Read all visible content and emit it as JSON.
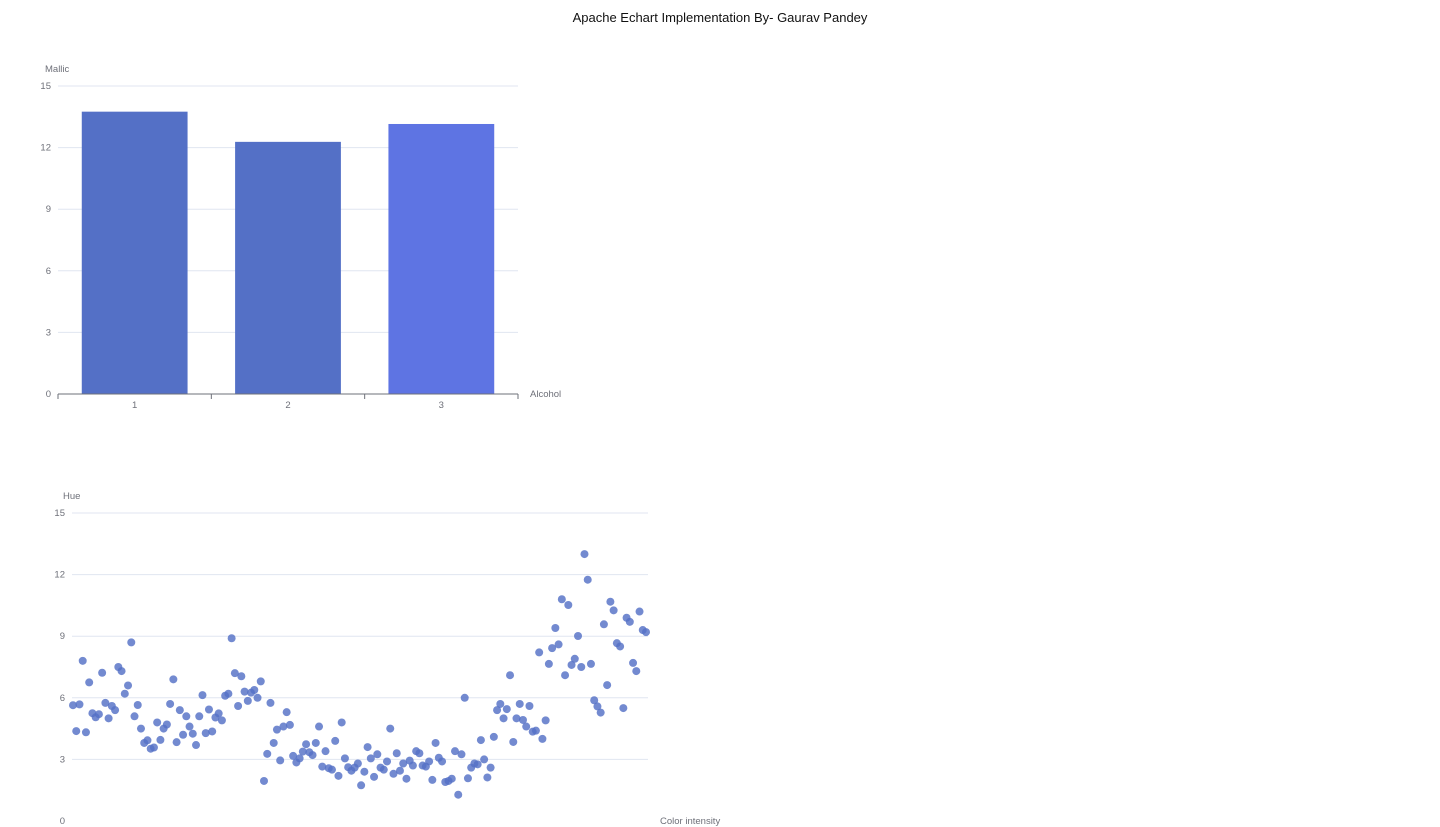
{
  "title": "Apache Echart Implementation By- Gaurav Pandey",
  "colors": {
    "bar_primary": "#5470c6",
    "bar_highlight": "#5e74e3",
    "scatter": "#5470c6",
    "grid": "#e0e6f1",
    "axis": "#6e7079"
  },
  "chart_data": [
    {
      "type": "bar",
      "categories": [
        "1",
        "2",
        "3"
      ],
      "values": [
        13.75,
        12.28,
        13.15
      ],
      "xlabel": "Alcohol",
      "ylabel": "Mallic",
      "ylim": [
        0,
        15
      ],
      "yticks": [
        0,
        3,
        6,
        9,
        12,
        15
      ],
      "grid": true
    },
    {
      "type": "scatter",
      "xlabel": "Color intensity",
      "ylabel": "Hue",
      "ylim": [
        0,
        15
      ],
      "yticks": [
        0,
        3,
        6,
        9,
        12,
        15
      ],
      "grid": true,
      "points": [
        {
          "x": 1,
          "y": 5.64
        },
        {
          "x": 2,
          "y": 4.38
        },
        {
          "x": 3,
          "y": 5.68
        },
        {
          "x": 4,
          "y": 7.8
        },
        {
          "x": 5,
          "y": 4.32
        },
        {
          "x": 6,
          "y": 6.75
        },
        {
          "x": 7,
          "y": 5.25
        },
        {
          "x": 8,
          "y": 5.05
        },
        {
          "x": 9,
          "y": 5.2
        },
        {
          "x": 10,
          "y": 7.22
        },
        {
          "x": 11,
          "y": 5.75
        },
        {
          "x": 12,
          "y": 5.0
        },
        {
          "x": 13,
          "y": 5.6
        },
        {
          "x": 14,
          "y": 5.4
        },
        {
          "x": 15,
          "y": 7.5
        },
        {
          "x": 16,
          "y": 7.3
        },
        {
          "x": 17,
          "y": 6.2
        },
        {
          "x": 18,
          "y": 6.6
        },
        {
          "x": 19,
          "y": 8.7
        },
        {
          "x": 20,
          "y": 5.1
        },
        {
          "x": 21,
          "y": 5.65
        },
        {
          "x": 22,
          "y": 4.5
        },
        {
          "x": 23,
          "y": 3.8
        },
        {
          "x": 24,
          "y": 3.93
        },
        {
          "x": 25,
          "y": 3.52
        },
        {
          "x": 26,
          "y": 3.58
        },
        {
          "x": 27,
          "y": 4.8
        },
        {
          "x": 28,
          "y": 3.95
        },
        {
          "x": 29,
          "y": 4.5
        },
        {
          "x": 30,
          "y": 4.7
        },
        {
          "x": 31,
          "y": 5.7
        },
        {
          "x": 32,
          "y": 6.9
        },
        {
          "x": 33,
          "y": 3.84
        },
        {
          "x": 34,
          "y": 5.4
        },
        {
          "x": 35,
          "y": 4.2
        },
        {
          "x": 36,
          "y": 5.1
        },
        {
          "x": 37,
          "y": 4.6
        },
        {
          "x": 38,
          "y": 4.25
        },
        {
          "x": 39,
          "y": 3.7
        },
        {
          "x": 40,
          "y": 5.1
        },
        {
          "x": 41,
          "y": 6.13
        },
        {
          "x": 42,
          "y": 4.28
        },
        {
          "x": 43,
          "y": 5.43
        },
        {
          "x": 44,
          "y": 4.36
        },
        {
          "x": 45,
          "y": 5.04
        },
        {
          "x": 46,
          "y": 5.24
        },
        {
          "x": 47,
          "y": 4.9
        },
        {
          "x": 48,
          "y": 6.1
        },
        {
          "x": 49,
          "y": 6.2
        },
        {
          "x": 50,
          "y": 8.9
        },
        {
          "x": 51,
          "y": 7.2
        },
        {
          "x": 52,
          "y": 5.6
        },
        {
          "x": 53,
          "y": 7.05
        },
        {
          "x": 54,
          "y": 6.3
        },
        {
          "x": 55,
          "y": 5.85
        },
        {
          "x": 56,
          "y": 6.25
        },
        {
          "x": 57,
          "y": 6.38
        },
        {
          "x": 58,
          "y": 6.0
        },
        {
          "x": 59,
          "y": 6.8
        },
        {
          "x": 60,
          "y": 1.95
        },
        {
          "x": 61,
          "y": 3.27
        },
        {
          "x": 62,
          "y": 5.75
        },
        {
          "x": 63,
          "y": 3.8
        },
        {
          "x": 64,
          "y": 4.45
        },
        {
          "x": 65,
          "y": 2.95
        },
        {
          "x": 66,
          "y": 4.6
        },
        {
          "x": 67,
          "y": 5.3
        },
        {
          "x": 68,
          "y": 4.68
        },
        {
          "x": 69,
          "y": 3.17
        },
        {
          "x": 70,
          "y": 2.85
        },
        {
          "x": 71,
          "y": 3.05
        },
        {
          "x": 72,
          "y": 3.38
        },
        {
          "x": 73,
          "y": 3.74
        },
        {
          "x": 74,
          "y": 3.35
        },
        {
          "x": 75,
          "y": 3.21
        },
        {
          "x": 76,
          "y": 3.8
        },
        {
          "x": 77,
          "y": 4.6
        },
        {
          "x": 78,
          "y": 2.65
        },
        {
          "x": 79,
          "y": 3.4
        },
        {
          "x": 80,
          "y": 2.57
        },
        {
          "x": 81,
          "y": 2.5
        },
        {
          "x": 82,
          "y": 3.9
        },
        {
          "x": 83,
          "y": 2.2
        },
        {
          "x": 84,
          "y": 4.8
        },
        {
          "x": 85,
          "y": 3.05
        },
        {
          "x": 86,
          "y": 2.62
        },
        {
          "x": 87,
          "y": 2.45
        },
        {
          "x": 88,
          "y": 2.6
        },
        {
          "x": 89,
          "y": 2.8
        },
        {
          "x": 90,
          "y": 1.74
        },
        {
          "x": 91,
          "y": 2.4
        },
        {
          "x": 92,
          "y": 3.6
        },
        {
          "x": 93,
          "y": 3.05
        },
        {
          "x": 94,
          "y": 2.15
        },
        {
          "x": 95,
          "y": 3.25
        },
        {
          "x": 96,
          "y": 2.6
        },
        {
          "x": 97,
          "y": 2.5
        },
        {
          "x": 98,
          "y": 2.9
        },
        {
          "x": 99,
          "y": 4.5
        },
        {
          "x": 100,
          "y": 2.3
        },
        {
          "x": 101,
          "y": 3.3
        },
        {
          "x": 102,
          "y": 2.45
        },
        {
          "x": 103,
          "y": 2.8
        },
        {
          "x": 104,
          "y": 2.06
        },
        {
          "x": 105,
          "y": 2.94
        },
        {
          "x": 106,
          "y": 2.7
        },
        {
          "x": 107,
          "y": 3.4
        },
        {
          "x": 108,
          "y": 3.3
        },
        {
          "x": 109,
          "y": 2.7
        },
        {
          "x": 110,
          "y": 2.65
        },
        {
          "x": 111,
          "y": 2.9
        },
        {
          "x": 112,
          "y": 2.0
        },
        {
          "x": 113,
          "y": 3.8
        },
        {
          "x": 114,
          "y": 3.08
        },
        {
          "x": 115,
          "y": 2.9
        },
        {
          "x": 116,
          "y": 1.9
        },
        {
          "x": 117,
          "y": 1.95
        },
        {
          "x": 118,
          "y": 2.06
        },
        {
          "x": 119,
          "y": 3.4
        },
        {
          "x": 120,
          "y": 1.28
        },
        {
          "x": 121,
          "y": 3.25
        },
        {
          "x": 122,
          "y": 6.0
        },
        {
          "x": 123,
          "y": 2.08
        },
        {
          "x": 124,
          "y": 2.6
        },
        {
          "x": 125,
          "y": 2.8
        },
        {
          "x": 126,
          "y": 2.76
        },
        {
          "x": 127,
          "y": 3.94
        },
        {
          "x": 128,
          "y": 3.0
        },
        {
          "x": 129,
          "y": 2.12
        },
        {
          "x": 130,
          "y": 2.6
        },
        {
          "x": 131,
          "y": 4.1
        },
        {
          "x": 132,
          "y": 5.4
        },
        {
          "x": 133,
          "y": 5.7
        },
        {
          "x": 134,
          "y": 5.0
        },
        {
          "x": 135,
          "y": 5.45
        },
        {
          "x": 136,
          "y": 7.1
        },
        {
          "x": 137,
          "y": 3.85
        },
        {
          "x": 138,
          "y": 5.0
        },
        {
          "x": 139,
          "y": 5.7
        },
        {
          "x": 140,
          "y": 4.92
        },
        {
          "x": 141,
          "y": 4.6
        },
        {
          "x": 142,
          "y": 5.6
        },
        {
          "x": 143,
          "y": 4.35
        },
        {
          "x": 144,
          "y": 4.4
        },
        {
          "x": 145,
          "y": 8.21
        },
        {
          "x": 146,
          "y": 4.0
        },
        {
          "x": 147,
          "y": 4.9
        },
        {
          "x": 148,
          "y": 7.65
        },
        {
          "x": 149,
          "y": 8.42
        },
        {
          "x": 150,
          "y": 9.4
        },
        {
          "x": 151,
          "y": 8.6
        },
        {
          "x": 152,
          "y": 10.8
        },
        {
          "x": 153,
          "y": 7.1
        },
        {
          "x": 154,
          "y": 10.52
        },
        {
          "x": 155,
          "y": 7.6
        },
        {
          "x": 156,
          "y": 7.9
        },
        {
          "x": 157,
          "y": 9.01
        },
        {
          "x": 158,
          "y": 7.5
        },
        {
          "x": 159,
          "y": 13.0
        },
        {
          "x": 160,
          "y": 11.75
        },
        {
          "x": 161,
          "y": 7.65
        },
        {
          "x": 162,
          "y": 5.88
        },
        {
          "x": 163,
          "y": 5.58
        },
        {
          "x": 164,
          "y": 5.28
        },
        {
          "x": 165,
          "y": 9.58
        },
        {
          "x": 166,
          "y": 6.62
        },
        {
          "x": 167,
          "y": 10.68
        },
        {
          "x": 168,
          "y": 10.26
        },
        {
          "x": 169,
          "y": 8.66
        },
        {
          "x": 170,
          "y": 8.5
        },
        {
          "x": 171,
          "y": 5.5
        },
        {
          "x": 172,
          "y": 9.899
        },
        {
          "x": 173,
          "y": 9.7
        },
        {
          "x": 174,
          "y": 7.7
        },
        {
          "x": 175,
          "y": 7.3
        },
        {
          "x": 176,
          "y": 10.2
        },
        {
          "x": 177,
          "y": 9.3
        },
        {
          "x": 178,
          "y": 9.2
        }
      ]
    }
  ]
}
